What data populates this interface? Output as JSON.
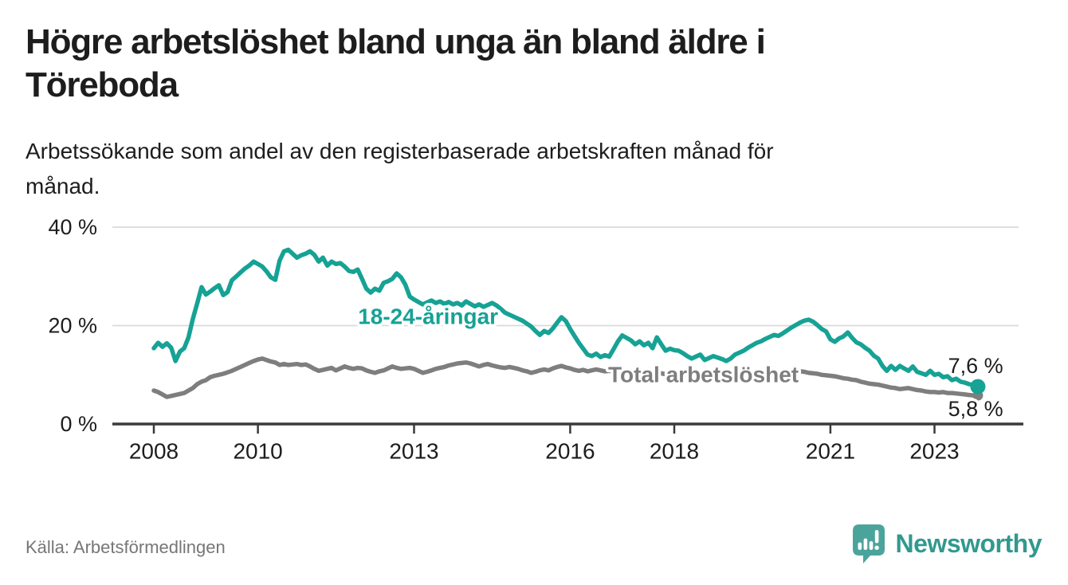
{
  "header": {
    "title_lines": [
      "Högre arbetslöshet bland unga än bland äldre i",
      "Töreboda"
    ],
    "subtitle_lines": [
      "Arbetssökande som andel av den registerbaserade arbetskraften månad för",
      "månad."
    ]
  },
  "footer": {
    "source": "Källa: Arbetsförmedlingen",
    "brand_name": "Newsworthy",
    "brand_icon": "bar-chart-speech-bubble-icon"
  },
  "colors": {
    "youth_line": "#16a295",
    "total_line": "#7e7e7e",
    "text_dark": "#1d1d1d",
    "grid": "#dadada",
    "axis": "#3a3a3a",
    "source_text": "#767676",
    "brand_teal": "#31998f",
    "logo_teal": "#4ba49b",
    "halo": "#ffffff"
  },
  "chart_data": {
    "type": "line",
    "unit": "%",
    "frequency": "monthly",
    "x_start_year": 2008,
    "x_start_month": 1,
    "x_end_year": 2023,
    "x_end_month": 11,
    "xlim": [
      2007.2,
      2024.7
    ],
    "ylim": [
      0,
      40
    ],
    "grid": "horizontal",
    "legend_position": "inline-labels",
    "x_ticks": [
      {
        "year": 2008,
        "label": "2008"
      },
      {
        "year": 2010,
        "label": "2010"
      },
      {
        "year": 2013,
        "label": "2013"
      },
      {
        "year": 2016,
        "label": "2016"
      },
      {
        "year": 2018,
        "label": "2018"
      },
      {
        "year": 2021,
        "label": "2021"
      },
      {
        "year": 2023,
        "label": "2023"
      }
    ],
    "y_ticks": [
      {
        "value": 0,
        "label": "0 %"
      },
      {
        "value": 20,
        "label": "20 %"
      },
      {
        "value": 40,
        "label": "40 %"
      }
    ],
    "series": [
      {
        "name": "18-24-åringar",
        "color_key": "youth_line",
        "end_label": "7,6 %",
        "end_value": 7.6,
        "values": [
          15.4,
          16.5,
          15.7,
          16.4,
          15.5,
          12.8,
          14.7,
          15.4,
          17.6,
          21.4,
          24.5,
          27.8,
          26.3,
          26.9,
          27.6,
          28.2,
          26.2,
          26.8,
          29.2,
          30.0,
          30.8,
          31.6,
          32.2,
          33.0,
          32.5,
          32.0,
          31.0,
          29.8,
          29.3,
          33.2,
          35.1,
          35.4,
          34.6,
          33.8,
          34.3,
          34.6,
          35.1,
          34.4,
          33.0,
          33.8,
          32.2,
          33.0,
          32.5,
          32.7,
          32.0,
          31.1,
          30.9,
          31.4,
          29.5,
          27.5,
          26.7,
          27.5,
          27.1,
          28.7,
          29.0,
          29.5,
          30.6,
          29.8,
          28.3,
          25.9,
          25.3,
          24.8,
          24.3,
          24.7,
          25.1,
          24.6,
          24.9,
          24.4,
          24.8,
          24.3,
          24.6,
          24.1,
          24.9,
          24.4,
          23.9,
          24.3,
          23.8,
          24.2,
          24.6,
          24.1,
          23.4,
          22.6,
          22.2,
          21.8,
          21.4,
          21.0,
          20.4,
          19.8,
          18.9,
          18.1,
          18.9,
          18.5,
          19.4,
          20.6,
          21.7,
          20.9,
          19.3,
          17.9,
          16.5,
          15.3,
          14.1,
          13.8,
          14.3,
          13.6,
          14.0,
          13.7,
          15.2,
          16.8,
          18.0,
          17.5,
          17.0,
          16.2,
          16.8,
          16.0,
          16.5,
          15.4,
          17.6,
          16.2,
          14.9,
          15.3,
          15.0,
          14.9,
          14.4,
          13.8,
          13.3,
          13.7,
          14.1,
          13.0,
          13.4,
          13.8,
          13.5,
          13.2,
          12.8,
          13.3,
          14.1,
          14.5,
          14.9,
          15.5,
          16.0,
          16.5,
          16.8,
          17.3,
          17.7,
          18.1,
          17.9,
          18.4,
          19.0,
          19.6,
          20.1,
          20.6,
          21.0,
          21.2,
          20.8,
          20.1,
          19.3,
          18.8,
          17.2,
          16.7,
          17.4,
          17.8,
          18.6,
          17.5,
          16.6,
          16.2,
          15.5,
          14.9,
          13.9,
          13.3,
          11.8,
          10.8,
          11.8,
          11.0,
          11.8,
          11.3,
          10.8,
          11.7,
          10.6,
          10.3,
          10.0,
          10.8,
          10.0,
          10.2,
          9.5,
          9.7,
          8.9,
          9.2,
          8.6,
          8.4,
          8.1,
          7.9,
          7.6
        ]
      },
      {
        "name": "Total arbetslöshet",
        "color_key": "total_line",
        "end_label": "5,8 %",
        "end_value": 5.8,
        "values": [
          6.8,
          6.5,
          6.0,
          5.5,
          5.7,
          5.9,
          6.1,
          6.3,
          6.8,
          7.3,
          8.1,
          8.6,
          8.9,
          9.5,
          9.8,
          10.0,
          10.2,
          10.5,
          10.8,
          11.2,
          11.6,
          12.0,
          12.4,
          12.8,
          13.1,
          13.3,
          13.0,
          12.7,
          12.5,
          12.0,
          12.2,
          12.0,
          12.1,
          12.2,
          12.0,
          12.1,
          11.7,
          11.2,
          10.8,
          11.0,
          11.2,
          11.4,
          10.9,
          11.3,
          11.7,
          11.4,
          11.2,
          11.4,
          11.3,
          10.9,
          10.6,
          10.4,
          10.7,
          10.9,
          11.3,
          11.7,
          11.4,
          11.2,
          11.3,
          11.4,
          11.2,
          10.8,
          10.4,
          10.6,
          10.9,
          11.2,
          11.4,
          11.6,
          11.9,
          12.1,
          12.3,
          12.4,
          12.5,
          12.3,
          12.0,
          11.7,
          12.0,
          12.2,
          11.9,
          11.7,
          11.5,
          11.4,
          11.6,
          11.4,
          11.2,
          10.9,
          10.7,
          10.4,
          10.6,
          10.9,
          11.1,
          10.9,
          11.3,
          11.6,
          11.8,
          11.5,
          11.3,
          11.0,
          10.8,
          11.0,
          10.7,
          10.9,
          11.1,
          10.9,
          10.7,
          10.8,
          10.6,
          10.8,
          10.9,
          10.7,
          10.5,
          10.7,
          10.5,
          10.3,
          10.5,
          10.3,
          10.1,
          10.3,
          10.1,
          10.2,
          10.3,
          10.1,
          9.9,
          10.0,
          9.8,
          9.6,
          9.8,
          9.6,
          9.4,
          9.6,
          9.4,
          9.5,
          9.6,
          9.4,
          9.2,
          9.4,
          9.2,
          9.0,
          9.2,
          9.4,
          9.6,
          9.8,
          9.7,
          9.9,
          10.0,
          10.2,
          10.4,
          10.6,
          10.5,
          10.7,
          10.6,
          10.4,
          10.3,
          10.2,
          10.0,
          9.9,
          9.8,
          9.7,
          9.5,
          9.3,
          9.2,
          9.0,
          8.9,
          8.6,
          8.4,
          8.2,
          8.1,
          8.0,
          7.8,
          7.6,
          7.4,
          7.3,
          7.1,
          7.2,
          7.3,
          7.1,
          6.9,
          6.8,
          6.6,
          6.5,
          6.5,
          6.4,
          6.5,
          6.3,
          6.3,
          6.2,
          6.1,
          6.0,
          5.9,
          5.8,
          5.8
        ]
      }
    ],
    "annotations": [
      {
        "text": "18-24-åringar",
        "year": 2013.27,
        "value": 21.9,
        "color_key": "youth_line",
        "bold": true,
        "anchor": "middle"
      },
      {
        "text": "Total arbetslöshet",
        "year": 2018.56,
        "value": 10.05,
        "color_key": "total_line",
        "bold": true,
        "anchor": "middle"
      },
      {
        "text": "7,6 %",
        "year": 2024.32,
        "value": 11.8,
        "color_key": "text_dark",
        "bold": false,
        "anchor": "end"
      },
      {
        "text": "5,8 %",
        "year": 2024.32,
        "value": 3.1,
        "color_key": "text_dark",
        "bold": false,
        "anchor": "end"
      }
    ]
  }
}
